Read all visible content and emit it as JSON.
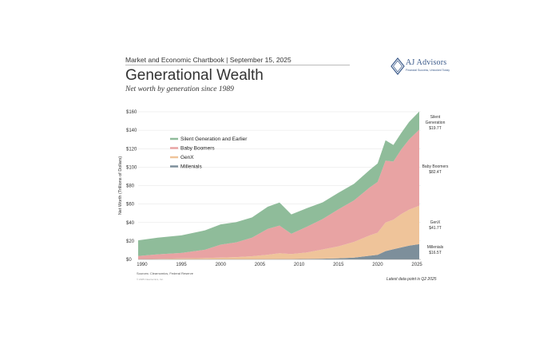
{
  "header": {
    "kicker": "Market and Economic Chartbook | September 15, 2025",
    "title": "Generational Wealth",
    "subtitle": "Net worth by generation since 1989"
  },
  "logo": {
    "name": "AJ Advisors",
    "tagline": "Financial Success, Unlocked Today",
    "mark": "AJA"
  },
  "footer": {
    "sources": "Sources: Clearnomics, Federal Reserve",
    "copyright": "© 2025 Clearnomics, Inc.",
    "note": "Latest data point is Q2 2025"
  },
  "colors": {
    "silent": "#8fbc9a",
    "boomers": "#e8a3a3",
    "genx": "#efc49a",
    "millenials": "#7d8f9b"
  },
  "chart_data": {
    "type": "area",
    "stacked": true,
    "title": "Generational Wealth",
    "subtitle": "Net worth by generation since 1989",
    "xlabel": "",
    "ylabel": "Net Worth (Trillions of Dollars)",
    "xlim": [
      1989.5,
      2025.5
    ],
    "ylim": [
      0,
      160
    ],
    "x_ticks": [
      "1990",
      "1995",
      "2000",
      "2005",
      "2010",
      "2015",
      "2020",
      "2025"
    ],
    "y_ticks": [
      "$0",
      "$20",
      "$40",
      "$60",
      "$80",
      "$100",
      "$120",
      "$140",
      "$160"
    ],
    "legend_position": "upper-left",
    "x": [
      1989.5,
      1992,
      1995,
      1998,
      2000,
      2002,
      2004,
      2006,
      2007.5,
      2009,
      2011,
      2013,
      2015,
      2017,
      2019,
      2020,
      2021,
      2022,
      2023,
      2024,
      2025.3
    ],
    "series": [
      {
        "name": "Millenials",
        "label": "Millenials",
        "end_label": "$16.5T",
        "values": [
          0,
          0,
          0,
          0,
          0,
          0,
          0,
          0.1,
          0.2,
          0.3,
          0.5,
          0.8,
          1.2,
          2,
          4,
          5,
          9,
          11,
          13,
          15,
          16.5
        ]
      },
      {
        "name": "GenX",
        "label": "GenX",
        "end_label": "$41.7T",
        "values": [
          0.2,
          0.5,
          1,
          1.5,
          2,
          2.5,
          3.5,
          5,
          6.5,
          5.5,
          7,
          10,
          13,
          17,
          22,
          24,
          31,
          32,
          36,
          39,
          41.7
        ]
      },
      {
        "name": "Baby Boomers",
        "label": "Baby Boomers",
        "end_label": "$82.4T",
        "values": [
          3.5,
          5,
          6,
          9,
          14,
          16,
          20,
          28,
          30,
          22,
          28,
          33,
          40,
          45,
          52,
          55,
          67,
          63,
          70,
          76,
          82.4
        ]
      },
      {
        "name": "Silent Generation and Earlier",
        "label": "Silent\nGeneration",
        "end_label": "$19.7T",
        "values": [
          17,
          18,
          19,
          21,
          22,
          22,
          22,
          24,
          25,
          21,
          20,
          18,
          18,
          18,
          19,
          20,
          22,
          18,
          18,
          19,
          19.7
        ]
      }
    ]
  }
}
